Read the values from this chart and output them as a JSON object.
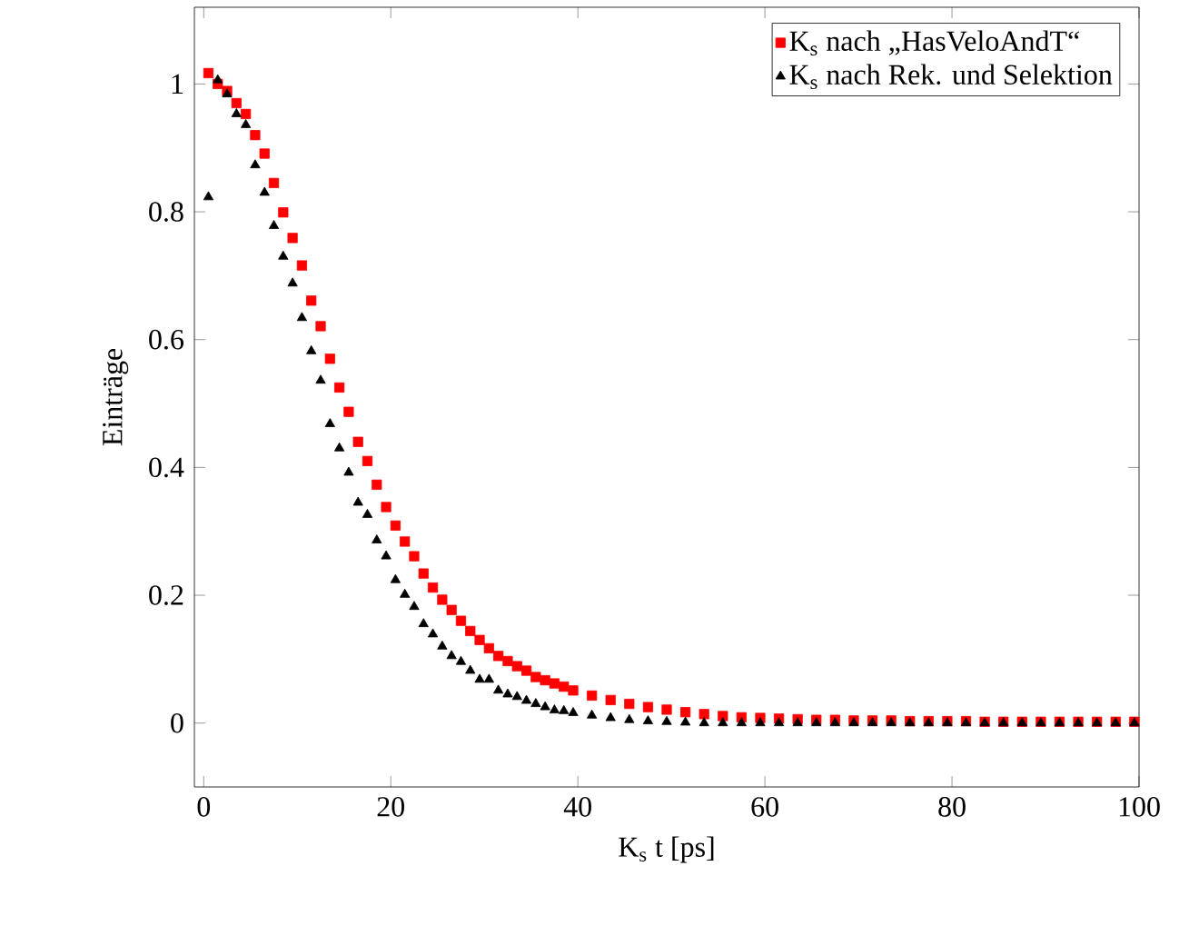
{
  "chart_data": {
    "type": "scatter",
    "xlabel": "K$_{s}$ t [ps]",
    "ylabel": "Einträge",
    "xlim": [
      -1,
      100
    ],
    "ylim": [
      -0.1,
      1.12
    ],
    "xticks": [
      0,
      20,
      40,
      60,
      80,
      100
    ],
    "yticks": [
      0,
      0.2,
      0.4,
      0.6,
      0.8,
      1
    ],
    "legend": "top right",
    "grid": false,
    "series": [
      {
        "name": "K$_{s}$ nach „HasVeloAndT“",
        "color": "#ff0000",
        "marker": "square",
        "x": [
          0.5,
          1.5,
          2.5,
          3.5,
          4.5,
          5.5,
          6.5,
          7.5,
          8.5,
          9.5,
          10.5,
          11.5,
          12.5,
          13.5,
          14.5,
          15.5,
          16.5,
          17.5,
          18.5,
          19.5,
          20.5,
          21.5,
          22.5,
          23.5,
          24.5,
          25.5,
          26.5,
          27.5,
          28.5,
          29.5,
          30.5,
          31.5,
          32.5,
          33.5,
          34.5,
          35.5,
          36.5,
          37.5,
          38.5,
          39.5,
          41.5,
          43.5,
          45.5,
          47.5,
          49.5,
          51.5,
          53.5,
          55.5,
          57.5,
          59.5,
          61.5,
          63.5,
          65.5,
          67.5,
          69.5,
          71.5,
          73.5,
          75.5,
          77.5,
          79.5,
          81.5,
          83.5,
          85.5,
          87.5,
          89.5,
          91.5,
          93.5,
          95.5,
          97.5,
          99.5
        ],
        "values": [
          1.017,
          1.0,
          0.989,
          0.97,
          0.953,
          0.92,
          0.891,
          0.845,
          0.799,
          0.759,
          0.716,
          0.661,
          0.621,
          0.57,
          0.525,
          0.487,
          0.44,
          0.41,
          0.373,
          0.338,
          0.309,
          0.284,
          0.261,
          0.234,
          0.212,
          0.193,
          0.177,
          0.16,
          0.144,
          0.13,
          0.117,
          0.105,
          0.097,
          0.089,
          0.082,
          0.072,
          0.067,
          0.062,
          0.057,
          0.051,
          0.043,
          0.036,
          0.03,
          0.025,
          0.021,
          0.017,
          0.014,
          0.011,
          0.009,
          0.008,
          0.007,
          0.006,
          0.005,
          0.005,
          0.004,
          0.004,
          0.004,
          0.003,
          0.003,
          0.003,
          0.003,
          0.002,
          0.002,
          0.002,
          0.002,
          0.002,
          0.002,
          0.002,
          0.002,
          0.002
        ]
      },
      {
        "name": "K$_{s}$ nach Rek. und Selektion",
        "color": "#000000",
        "marker": "triangle",
        "x": [
          0.5,
          1.5,
          2.5,
          3.5,
          4.5,
          5.5,
          6.5,
          7.5,
          8.5,
          9.5,
          10.5,
          11.5,
          12.5,
          13.5,
          14.5,
          15.5,
          16.5,
          17.5,
          18.5,
          19.5,
          20.5,
          21.5,
          22.5,
          23.5,
          24.5,
          25.5,
          26.5,
          27.5,
          28.5,
          29.5,
          30.5,
          31.5,
          32.5,
          33.5,
          34.5,
          35.5,
          36.5,
          37.5,
          38.5,
          39.5,
          41.5,
          43.5,
          45.5,
          47.5,
          49.5,
          51.5,
          53.5,
          55.5,
          57.5,
          59.5,
          61.5,
          63.5,
          65.5,
          67.5,
          69.5,
          71.5,
          73.5,
          75.5,
          77.5,
          79.5,
          81.5,
          83.5,
          85.5,
          87.5,
          89.5,
          91.5,
          93.5,
          95.5,
          97.5,
          99.5
        ],
        "values": [
          0.823,
          1.006,
          0.984,
          0.953,
          0.936,
          0.873,
          0.83,
          0.778,
          0.73,
          0.688,
          0.634,
          0.582,
          0.536,
          0.468,
          0.43,
          0.392,
          0.345,
          0.326,
          0.286,
          0.261,
          0.224,
          0.201,
          0.182,
          0.155,
          0.139,
          0.12,
          0.105,
          0.096,
          0.082,
          0.068,
          0.068,
          0.051,
          0.045,
          0.041,
          0.035,
          0.03,
          0.025,
          0.02,
          0.019,
          0.016,
          0.012,
          0.008,
          0.005,
          0.003,
          0.002,
          0.001,
          0,
          0,
          0,
          0,
          0,
          0,
          0,
          0,
          0,
          0,
          0,
          0,
          0,
          0,
          0,
          0,
          0,
          0,
          0,
          0,
          0,
          0,
          0,
          0
        ]
      }
    ]
  }
}
